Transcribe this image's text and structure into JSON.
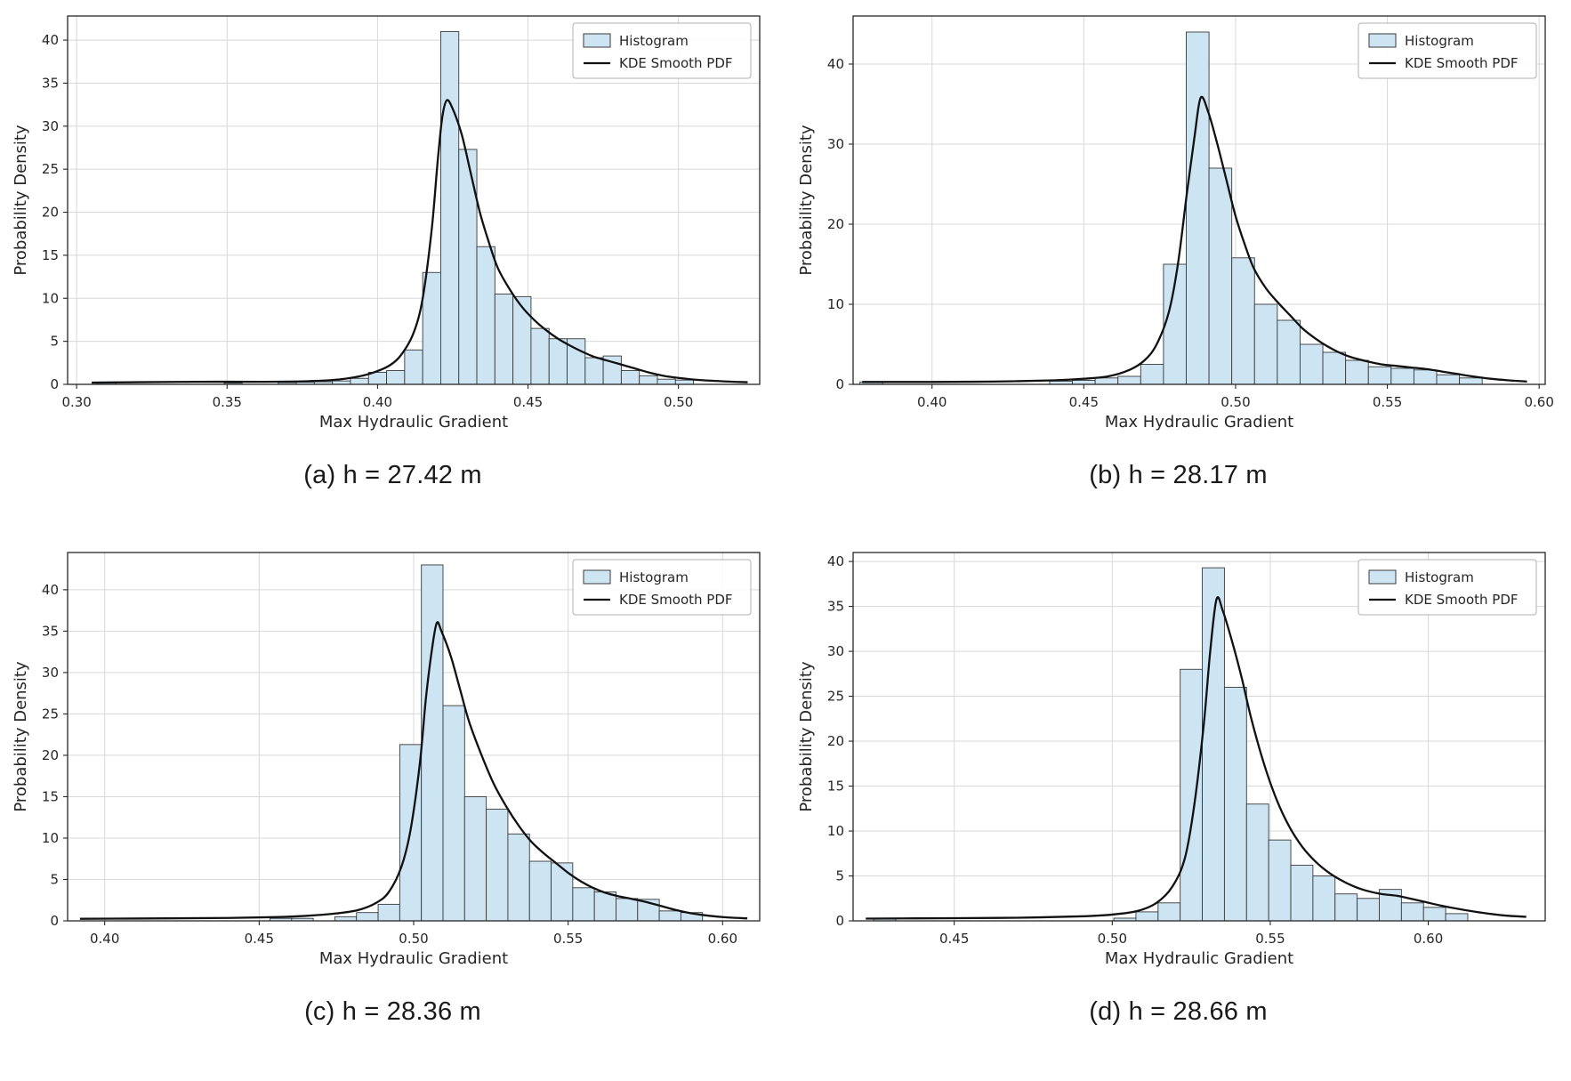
{
  "page": {
    "background": "#ffffff"
  },
  "colors": {
    "hist_fill": "#cde4f3",
    "hist_edge": "#3a3a3a",
    "kde": "#111111",
    "grid": "#d8d8d8",
    "axis": "#262626",
    "legend_border": "#b0b0b0"
  },
  "chart_data": [
    {
      "type": "bar",
      "subtype": "histogram+kde",
      "caption": "(a) h = 27.42 m",
      "xlabel": "Max Hydraulic Gradient",
      "ylabel": "Probability Density",
      "xlim": [
        0.297,
        0.527
      ],
      "ylim": [
        0,
        42.8
      ],
      "xticks": [
        0.3,
        0.35,
        0.4,
        0.45,
        0.5
      ],
      "xtick_labels": [
        "0.30",
        "0.35",
        "0.40",
        "0.45",
        "0.50"
      ],
      "yticks": [
        0,
        5,
        10,
        15,
        20,
        25,
        30,
        35,
        40
      ],
      "ytick_labels": [
        "0",
        "5",
        "10",
        "15",
        "20",
        "25",
        "30",
        "35",
        "40"
      ],
      "grid": true,
      "legend": {
        "position": "upper-right",
        "entries": [
          "Histogram",
          "KDE Smooth PDF"
        ]
      },
      "bin_width": 0.006,
      "bars": [
        [
          0.31,
          0.25
        ],
        [
          0.352,
          0.15
        ],
        [
          0.37,
          0.2
        ],
        [
          0.376,
          0.25
        ],
        [
          0.382,
          0.3
        ],
        [
          0.388,
          0.4
        ],
        [
          0.394,
          0.7
        ],
        [
          0.4,
          1.4
        ],
        [
          0.406,
          1.6
        ],
        [
          0.412,
          4.0
        ],
        [
          0.418,
          13.0
        ],
        [
          0.424,
          41.0
        ],
        [
          0.43,
          27.3
        ],
        [
          0.436,
          16.0
        ],
        [
          0.442,
          10.5
        ],
        [
          0.448,
          10.2
        ],
        [
          0.454,
          6.5
        ],
        [
          0.46,
          5.3
        ],
        [
          0.466,
          5.3
        ],
        [
          0.472,
          3.1
        ],
        [
          0.478,
          3.3
        ],
        [
          0.484,
          1.6
        ],
        [
          0.49,
          1.0
        ],
        [
          0.496,
          0.6
        ],
        [
          0.502,
          0.5
        ]
      ],
      "kde": [
        [
          0.305,
          0.2
        ],
        [
          0.32,
          0.25
        ],
        [
          0.34,
          0.3
        ],
        [
          0.36,
          0.3
        ],
        [
          0.375,
          0.35
        ],
        [
          0.385,
          0.5
        ],
        [
          0.392,
          0.8
        ],
        [
          0.398,
          1.3
        ],
        [
          0.404,
          2.2
        ],
        [
          0.408,
          3.5
        ],
        [
          0.412,
          6.0
        ],
        [
          0.415,
          10.0
        ],
        [
          0.418,
          18.0
        ],
        [
          0.42,
          26.0
        ],
        [
          0.4215,
          31.0
        ],
        [
          0.423,
          33.0
        ],
        [
          0.425,
          32.0
        ],
        [
          0.428,
          29.0
        ],
        [
          0.431,
          24.5
        ],
        [
          0.434,
          20.0
        ],
        [
          0.437,
          16.5
        ],
        [
          0.44,
          13.5
        ],
        [
          0.444,
          11.0
        ],
        [
          0.448,
          9.0
        ],
        [
          0.452,
          7.5
        ],
        [
          0.456,
          6.3
        ],
        [
          0.46,
          5.3
        ],
        [
          0.464,
          4.5
        ],
        [
          0.468,
          3.8
        ],
        [
          0.472,
          3.2
        ],
        [
          0.476,
          2.8
        ],
        [
          0.48,
          2.4
        ],
        [
          0.485,
          1.9
        ],
        [
          0.49,
          1.4
        ],
        [
          0.495,
          1.0
        ],
        [
          0.5,
          0.75
        ],
        [
          0.507,
          0.5
        ],
        [
          0.515,
          0.35
        ],
        [
          0.523,
          0.25
        ]
      ]
    },
    {
      "type": "bar",
      "subtype": "histogram+kde",
      "caption": "(b) h = 28.17 m",
      "xlabel": "Max Hydraulic Gradient",
      "ylabel": "Probability Density",
      "xlim": [
        0.374,
        0.602
      ],
      "ylim": [
        0,
        46
      ],
      "xticks": [
        0.4,
        0.45,
        0.5,
        0.55,
        0.6
      ],
      "xtick_labels": [
        "0.40",
        "0.45",
        "0.50",
        "0.55",
        "0.60"
      ],
      "yticks": [
        0,
        10,
        20,
        30,
        40
      ],
      "ytick_labels": [
        "0",
        "10",
        "20",
        "30",
        "40"
      ],
      "grid": true,
      "legend": {
        "position": "upper-right",
        "entries": [
          "Histogram",
          "KDE Smooth PDF"
        ]
      },
      "bin_width": 0.0075,
      "bars": [
        [
          0.38,
          0.3
        ],
        [
          0.4425,
          0.4
        ],
        [
          0.45,
          0.5
        ],
        [
          0.4575,
          0.8
        ],
        [
          0.465,
          1.0
        ],
        [
          0.4725,
          2.5
        ],
        [
          0.48,
          15.0
        ],
        [
          0.4875,
          44.0
        ],
        [
          0.495,
          27.0
        ],
        [
          0.5025,
          15.8
        ],
        [
          0.51,
          10.0
        ],
        [
          0.5175,
          8.0
        ],
        [
          0.525,
          5.0
        ],
        [
          0.5325,
          4.0
        ],
        [
          0.54,
          3.0
        ],
        [
          0.5475,
          2.2
        ],
        [
          0.555,
          2.0
        ],
        [
          0.5625,
          1.8
        ],
        [
          0.57,
          1.2
        ],
        [
          0.5775,
          0.8
        ]
      ],
      "kde": [
        [
          0.377,
          0.3
        ],
        [
          0.4,
          0.3
        ],
        [
          0.42,
          0.35
        ],
        [
          0.44,
          0.5
        ],
        [
          0.45,
          0.7
        ],
        [
          0.458,
          1.0
        ],
        [
          0.465,
          1.8
        ],
        [
          0.47,
          3.0
        ],
        [
          0.474,
          5.0
        ],
        [
          0.478,
          9.0
        ],
        [
          0.481,
          15.0
        ],
        [
          0.484,
          24.0
        ],
        [
          0.4865,
          31.0
        ],
        [
          0.4885,
          35.8
        ],
        [
          0.491,
          34.0
        ],
        [
          0.494,
          30.0
        ],
        [
          0.497,
          25.5
        ],
        [
          0.5,
          21.0
        ],
        [
          0.503,
          17.5
        ],
        [
          0.506,
          14.5
        ],
        [
          0.51,
          12.0
        ],
        [
          0.514,
          10.2
        ],
        [
          0.518,
          8.6
        ],
        [
          0.522,
          7.0
        ],
        [
          0.526,
          5.8
        ],
        [
          0.53,
          4.8
        ],
        [
          0.534,
          4.0
        ],
        [
          0.538,
          3.4
        ],
        [
          0.543,
          2.9
        ],
        [
          0.548,
          2.5
        ],
        [
          0.553,
          2.3
        ],
        [
          0.558,
          2.1
        ],
        [
          0.563,
          1.9
        ],
        [
          0.568,
          1.6
        ],
        [
          0.573,
          1.3
        ],
        [
          0.578,
          1.0
        ],
        [
          0.584,
          0.7
        ],
        [
          0.59,
          0.5
        ],
        [
          0.596,
          0.35
        ]
      ]
    },
    {
      "type": "bar",
      "subtype": "histogram+kde",
      "caption": "(c) h = 28.36 m",
      "xlabel": "Max Hydraulic Gradient",
      "ylabel": "Probability Density",
      "xlim": [
        0.388,
        0.612
      ],
      "ylim": [
        0,
        44.5
      ],
      "xticks": [
        0.4,
        0.45,
        0.5,
        0.55,
        0.6
      ],
      "xtick_labels": [
        "0.40",
        "0.45",
        "0.50",
        "0.55",
        "0.60"
      ],
      "yticks": [
        0,
        5,
        10,
        15,
        20,
        25,
        30,
        35,
        40
      ],
      "ytick_labels": [
        "0",
        "5",
        "10",
        "15",
        "20",
        "25",
        "30",
        "35",
        "40"
      ],
      "grid": true,
      "legend": {
        "position": "upper-right",
        "entries": [
          "Histogram",
          "KDE Smooth PDF"
        ]
      },
      "bin_width": 0.007,
      "bars": [
        [
          0.457,
          0.3
        ],
        [
          0.464,
          0.3
        ],
        [
          0.478,
          0.5
        ],
        [
          0.485,
          1.0
        ],
        [
          0.492,
          2.0
        ],
        [
          0.499,
          21.3
        ],
        [
          0.506,
          43.0
        ],
        [
          0.513,
          26.0
        ],
        [
          0.52,
          15.0
        ],
        [
          0.527,
          13.5
        ],
        [
          0.534,
          10.5
        ],
        [
          0.541,
          7.2
        ],
        [
          0.548,
          7.0
        ],
        [
          0.555,
          4.0
        ],
        [
          0.562,
          3.5
        ],
        [
          0.569,
          2.7
        ],
        [
          0.576,
          2.6
        ],
        [
          0.583,
          1.2
        ],
        [
          0.59,
          1.0
        ]
      ],
      "kde": [
        [
          0.392,
          0.25
        ],
        [
          0.42,
          0.3
        ],
        [
          0.44,
          0.35
        ],
        [
          0.455,
          0.45
        ],
        [
          0.465,
          0.6
        ],
        [
          0.475,
          0.9
        ],
        [
          0.482,
          1.3
        ],
        [
          0.488,
          2.2
        ],
        [
          0.492,
          3.5
        ],
        [
          0.496,
          6.5
        ],
        [
          0.499,
          11.0
        ],
        [
          0.502,
          19.0
        ],
        [
          0.504,
          27.0
        ],
        [
          0.506,
          33.0
        ],
        [
          0.5075,
          36.0
        ],
        [
          0.509,
          35.0
        ],
        [
          0.512,
          32.0
        ],
        [
          0.515,
          28.0
        ],
        [
          0.518,
          24.0
        ],
        [
          0.522,
          20.0
        ],
        [
          0.526,
          16.5
        ],
        [
          0.53,
          13.8
        ],
        [
          0.534,
          11.5
        ],
        [
          0.538,
          9.6
        ],
        [
          0.542,
          8.2
        ],
        [
          0.546,
          7.0
        ],
        [
          0.55,
          5.8
        ],
        [
          0.554,
          4.8
        ],
        [
          0.558,
          4.0
        ],
        [
          0.562,
          3.4
        ],
        [
          0.566,
          3.0
        ],
        [
          0.57,
          2.7
        ],
        [
          0.575,
          2.3
        ],
        [
          0.58,
          1.8
        ],
        [
          0.585,
          1.3
        ],
        [
          0.59,
          0.9
        ],
        [
          0.596,
          0.6
        ],
        [
          0.602,
          0.4
        ],
        [
          0.608,
          0.3
        ]
      ]
    },
    {
      "type": "bar",
      "subtype": "histogram+kde",
      "caption": "(d) h = 28.66 m",
      "xlabel": "Max Hydraulic Gradient",
      "ylabel": "Probability Density",
      "xlim": [
        0.418,
        0.637
      ],
      "ylim": [
        0,
        41
      ],
      "xticks": [
        0.45,
        0.5,
        0.55,
        0.6
      ],
      "xtick_labels": [
        "0.45",
        "0.50",
        "0.55",
        "0.60"
      ],
      "yticks": [
        0,
        5,
        10,
        15,
        20,
        25,
        30,
        35,
        40
      ],
      "ytick_labels": [
        "0",
        "5",
        "10",
        "15",
        "20",
        "25",
        "30",
        "35",
        "40"
      ],
      "grid": true,
      "legend": {
        "position": "upper-right",
        "entries": [
          "Histogram",
          "KDE Smooth PDF"
        ]
      },
      "bin_width": 0.007,
      "bars": [
        [
          0.428,
          0.2
        ],
        [
          0.504,
          0.3
        ],
        [
          0.511,
          1.0
        ],
        [
          0.518,
          2.0
        ],
        [
          0.525,
          28.0
        ],
        [
          0.532,
          39.3
        ],
        [
          0.539,
          26.0
        ],
        [
          0.546,
          13.0
        ],
        [
          0.553,
          9.0
        ],
        [
          0.56,
          6.2
        ],
        [
          0.567,
          5.0
        ],
        [
          0.574,
          3.0
        ],
        [
          0.581,
          2.5
        ],
        [
          0.588,
          3.5
        ],
        [
          0.595,
          2.0
        ],
        [
          0.602,
          1.5
        ],
        [
          0.609,
          0.8
        ]
      ],
      "kde": [
        [
          0.422,
          0.25
        ],
        [
          0.45,
          0.3
        ],
        [
          0.47,
          0.35
        ],
        [
          0.49,
          0.5
        ],
        [
          0.5,
          0.7
        ],
        [
          0.508,
          1.1
        ],
        [
          0.514,
          2.0
        ],
        [
          0.519,
          3.8
        ],
        [
          0.523,
          7.0
        ],
        [
          0.526,
          13.0
        ],
        [
          0.529,
          22.0
        ],
        [
          0.531,
          30.0
        ],
        [
          0.533,
          35.8
        ],
        [
          0.535,
          34.5
        ],
        [
          0.538,
          31.0
        ],
        [
          0.541,
          27.0
        ],
        [
          0.544,
          22.5
        ],
        [
          0.548,
          17.5
        ],
        [
          0.552,
          13.5
        ],
        [
          0.556,
          10.5
        ],
        [
          0.56,
          8.3
        ],
        [
          0.564,
          6.7
        ],
        [
          0.568,
          5.5
        ],
        [
          0.572,
          4.6
        ],
        [
          0.576,
          3.9
        ],
        [
          0.58,
          3.4
        ],
        [
          0.585,
          3.0
        ],
        [
          0.59,
          2.8
        ],
        [
          0.594,
          2.5
        ],
        [
          0.599,
          2.1
        ],
        [
          0.604,
          1.7
        ],
        [
          0.61,
          1.3
        ],
        [
          0.617,
          0.9
        ],
        [
          0.624,
          0.6
        ],
        [
          0.631,
          0.45
        ]
      ]
    }
  ]
}
